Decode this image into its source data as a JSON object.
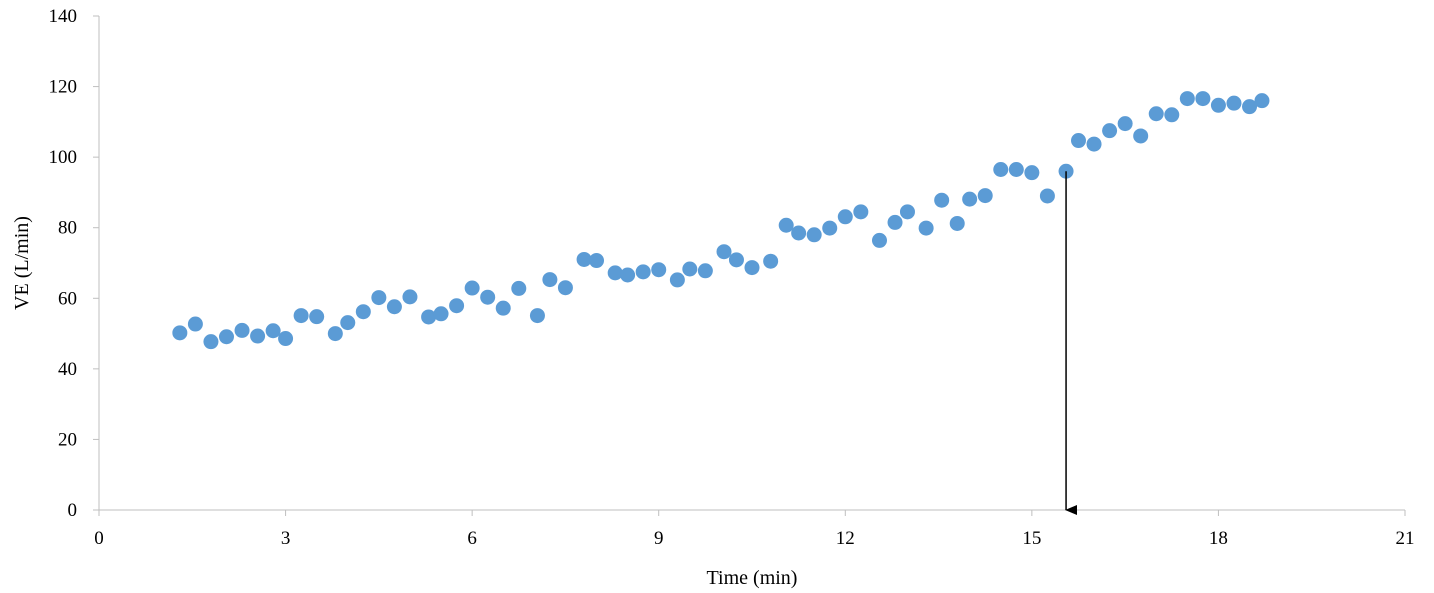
{
  "chart_data": {
    "type": "scatter",
    "title": "",
    "xlabel": "Time (min)",
    "ylabel": "VE (L/min)",
    "xlim": [
      0,
      21
    ],
    "ylim": [
      0,
      140
    ],
    "xticks": [
      "0",
      "3",
      "6",
      "9",
      "12",
      "15",
      "18",
      "21"
    ],
    "yticks": [
      "0",
      "20",
      "40",
      "60",
      "80",
      "100",
      "120",
      "140"
    ],
    "grid": false,
    "legend": "none",
    "marker_color": "#5B9BD5",
    "annotations": [
      {
        "type": "arrow",
        "x": 15.55,
        "y_from": 96,
        "y_to": 0,
        "color": "#000000"
      }
    ],
    "series": [
      {
        "x": [
          1.3,
          1.55,
          1.8,
          2.05,
          2.3,
          2.55,
          2.8,
          3.0,
          3.25,
          3.5,
          3.8,
          4.0,
          4.25,
          4.5,
          4.75,
          5.0,
          5.3,
          5.5,
          5.75,
          6.0,
          6.25,
          6.5,
          6.75,
          7.05,
          7.25,
          7.5,
          7.8,
          8.0,
          8.3,
          8.5,
          8.75,
          9.0,
          9.3,
          9.5,
          9.75,
          10.05,
          10.25,
          10.5,
          10.8,
          11.05,
          11.25,
          11.5,
          11.75,
          12.0,
          12.25,
          12.55,
          12.8,
          13.0,
          13.3,
          13.55,
          13.8,
          14.0,
          14.25,
          14.5,
          14.75,
          15.0,
          15.25,
          15.55,
          15.75,
          16.0,
          16.25,
          16.5,
          16.75,
          17.0,
          17.25,
          17.5,
          17.75,
          18.0,
          18.25,
          18.5,
          18.7
        ],
        "y": [
          50.2,
          52.7,
          47.7,
          49.1,
          50.9,
          49.3,
          50.8,
          48.6,
          55.1,
          54.8,
          50.0,
          53.1,
          56.2,
          60.2,
          57.6,
          60.4,
          54.7,
          55.6,
          57.9,
          62.9,
          60.3,
          57.2,
          62.8,
          55.1,
          65.3,
          63.0,
          71.0,
          70.7,
          67.2,
          66.6,
          67.5,
          68.1,
          65.2,
          68.3,
          67.8,
          73.2,
          70.9,
          68.7,
          70.5,
          80.7,
          78.5,
          78.0,
          79.9,
          83.1,
          84.5,
          76.4,
          81.5,
          84.5,
          79.9,
          87.8,
          81.2,
          88.1,
          89.1,
          96.5,
          96.5,
          95.6,
          89.0,
          96.0,
          104.7,
          103.7,
          107.5,
          109.5,
          106.0,
          112.3,
          112.0,
          116.6,
          116.6,
          114.7,
          115.3,
          114.3,
          116.0
        ]
      }
    ]
  }
}
